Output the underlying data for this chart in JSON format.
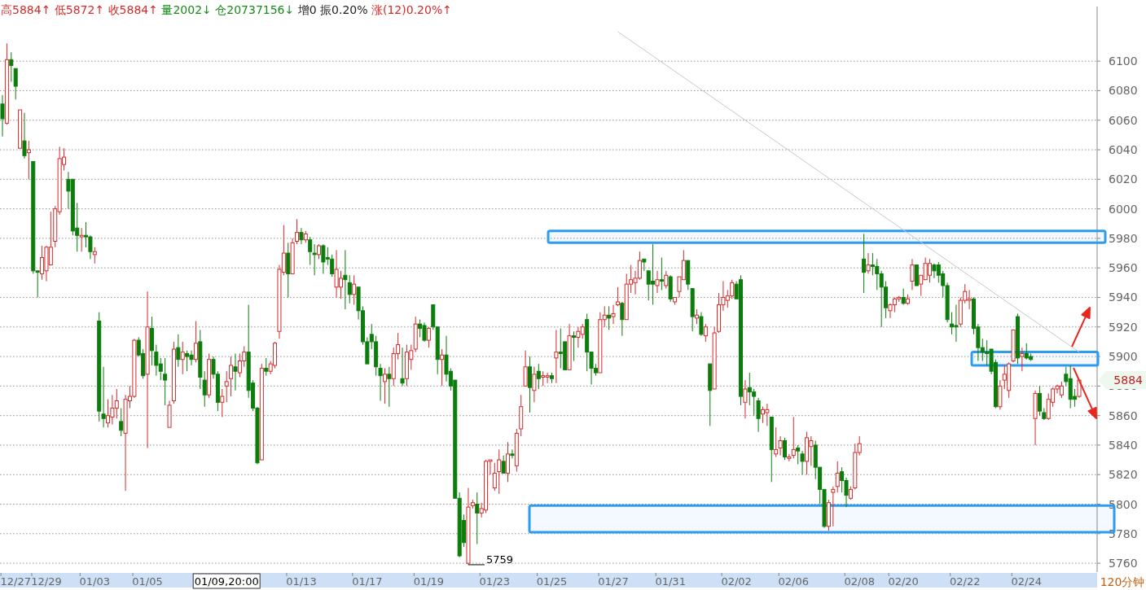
{
  "chart_data": {
    "type": "candlestick",
    "title": "高5884↑ 低5872↑ 收5884↑ 量2002↓ 仓20737156↓ 增0 振0.20% 涨(12)0.20%↑",
    "xlabel": "120分钟",
    "annotations": [
      "5759",
      "5884"
    ],
    "categories": [
      null,
      null,
      null,
      "12/27",
      null,
      null,
      null,
      null,
      null,
      null,
      "12/29",
      null,
      null,
      null,
      null,
      null,
      null,
      null,
      null,
      null,
      null,
      "01/03",
      null,
      null,
      null,
      null,
      null,
      null,
      null,
      null,
      null,
      null,
      null,
      "01/05",
      null,
      null,
      null,
      null,
      null,
      null,
      null,
      null,
      null,
      null,
      null,
      null,
      null,
      null,
      null,
      null,
      null,
      "01/09,20:00",
      null,
      null,
      null,
      null,
      null,
      null,
      null,
      null,
      null,
      null,
      null,
      null,
      null,
      null,
      null,
      null,
      "01/13",
      null,
      null,
      null,
      null,
      null,
      null,
      null,
      null,
      null,
      null,
      null,
      null,
      null,
      null,
      "01/17",
      null,
      null,
      null,
      null,
      null,
      null,
      null,
      null,
      null,
      null,
      null,
      null,
      null,
      "01/19",
      null,
      null,
      null,
      null,
      null,
      null,
      null,
      null,
      null,
      null,
      null,
      null,
      null,
      null,
      "01/23",
      null,
      null,
      null,
      null,
      null,
      null,
      null,
      null,
      null,
      null,
      null,
      null,
      "01/25",
      null,
      null,
      null,
      null,
      null,
      null,
      null,
      null,
      null,
      null,
      null,
      null,
      null,
      "01/27",
      null,
      null,
      null,
      null,
      null,
      null,
      null,
      null,
      null,
      null,
      null,
      null,
      "01/31",
      null,
      null,
      null,
      null,
      null,
      null,
      null,
      null,
      null,
      null,
      null,
      null,
      null,
      null,
      "02/02",
      null,
      null,
      null,
      null,
      null,
      null,
      null,
      null,
      null,
      null,
      null,
      null,
      "02/06",
      null,
      null,
      null,
      null,
      null,
      null,
      null,
      null,
      null,
      null,
      null,
      null,
      null,
      null,
      "02/08",
      null,
      null,
      null,
      null,
      null,
      null,
      null,
      null,
      null,
      "02/20",
      null,
      null,
      null,
      null,
      null,
      null,
      null,
      null,
      null,
      null,
      null,
      null,
      null,
      "02/22",
      null,
      null,
      null,
      null,
      null,
      null,
      null,
      null,
      null,
      null,
      null,
      null,
      null,
      "02/24",
      null,
      null,
      null,
      null,
      null,
      null,
      null,
      null,
      null,
      null,
      null,
      null
    ],
    "ohlc": [
      [
        6071,
        6077,
        6049,
        6061
      ],
      [
        6058,
        6112,
        6057,
        6101
      ],
      [
        6101,
        6106,
        6086,
        6097
      ],
      [
        6095,
        6095,
        6074,
        6083
      ],
      [
        6041,
        6067,
        6041,
        6067
      ],
      [
        6046,
        6065,
        6034,
        6036
      ],
      [
        6038,
        6046,
        6020,
        6040
      ],
      [
        6032,
        6032,
        5956,
        5958
      ],
      [
        5958,
        5958,
        5940,
        5957
      ],
      [
        5956,
        5975,
        5952,
        5967
      ],
      [
        5958,
        5975,
        5951,
        5974
      ],
      [
        5962,
        5998,
        5962,
        5974
      ],
      [
        5978,
        6002,
        5974,
        6000
      ],
      [
        5998,
        6042,
        5996,
        6034
      ],
      [
        6030,
        6041,
        6026,
        6035
      ],
      [
        6020,
        6025,
        6000,
        6012
      ],
      [
        6020,
        6020,
        5982,
        5985
      ],
      [
        5987,
        6004,
        5971,
        5982
      ],
      [
        5981,
        5987,
        5971,
        5982
      ],
      [
        5982,
        5991,
        5974,
        5981
      ],
      [
        5981,
        5982,
        5966,
        5971
      ],
      [
        5969,
        5974,
        5963,
        5971
      ],
      [
        5924,
        5930,
        5856,
        5863
      ],
      [
        5861,
        5893,
        5852,
        5858
      ],
      [
        5855,
        5871,
        5852,
        5860
      ],
      [
        5859,
        5874,
        5854,
        5865
      ],
      [
        5865,
        5878,
        5858,
        5870
      ],
      [
        5856,
        5865,
        5846,
        5850
      ],
      [
        5848,
        5874,
        5809,
        5871
      ],
      [
        5870,
        5880,
        5865,
        5873
      ],
      [
        5873,
        5912,
        5872,
        5911
      ],
      [
        5911,
        5913,
        5900,
        5901
      ],
      [
        5902,
        5905,
        5885,
        5887
      ],
      [
        5888,
        5944,
        5838,
        5920
      ],
      [
        5919,
        5927,
        5894,
        5904
      ],
      [
        5903,
        5908,
        5887,
        5894
      ],
      [
        5895,
        5899,
        5884,
        5890
      ],
      [
        5888,
        5899,
        5867,
        5884
      ],
      [
        5852,
        5870,
        5852,
        5867
      ],
      [
        5870,
        5910,
        5868,
        5905
      ],
      [
        5906,
        5915,
        5893,
        5898
      ],
      [
        5898,
        5910,
        5888,
        5903
      ],
      [
        5902,
        5904,
        5890,
        5900
      ],
      [
        5901,
        5904,
        5894,
        5898
      ],
      [
        5898,
        5924,
        5896,
        5909
      ],
      [
        5910,
        5918,
        5878,
        5886
      ],
      [
        5884,
        5890,
        5866,
        5874
      ],
      [
        5874,
        5902,
        5872,
        5898
      ],
      [
        5898,
        5900,
        5885,
        5888
      ],
      [
        5888,
        5890,
        5863,
        5869
      ],
      [
        5869,
        5878,
        5859,
        5873
      ],
      [
        5880,
        5890,
        5869,
        5883
      ],
      [
        5885,
        5900,
        5873,
        5894
      ],
      [
        5893,
        5902,
        5877,
        5890
      ],
      [
        5889,
        5902,
        5886,
        5897
      ],
      [
        5897,
        5907,
        5893,
        5903
      ],
      [
        5903,
        5935,
        5872,
        5877
      ],
      [
        5882,
        5884,
        5863,
        5865
      ],
      [
        5865,
        5866,
        5827,
        5828
      ],
      [
        5830,
        5895,
        5830,
        5892
      ],
      [
        5892,
        5899,
        5887,
        5890
      ],
      [
        5890,
        5897,
        5888,
        5895
      ],
      [
        5894,
        5910,
        5892,
        5909
      ],
      [
        5917,
        5962,
        5912,
        5959
      ],
      [
        5957,
        5989,
        5955,
        5970
      ],
      [
        5970,
        5977,
        5940,
        5956
      ],
      [
        5956,
        5980,
        5956,
        5977
      ],
      [
        5978,
        5993,
        5976,
        5984
      ],
      [
        5984,
        5987,
        5976,
        5979
      ],
      [
        5979,
        5985,
        5977,
        5983
      ],
      [
        5979,
        5981,
        5962,
        5971
      ],
      [
        5970,
        5976,
        5955,
        5969
      ],
      [
        5969,
        5976,
        5966,
        5975
      ],
      [
        5975,
        5976,
        5956,
        5964
      ],
      [
        5967,
        5974,
        5962,
        5966
      ],
      [
        5966,
        5969,
        5954,
        5956
      ],
      [
        5947,
        5972,
        5940,
        5959
      ],
      [
        5947,
        5958,
        5939,
        5953
      ],
      [
        5955,
        5972,
        5932,
        5952
      ],
      [
        5950,
        5955,
        5936,
        5942
      ],
      [
        5942,
        5955,
        5935,
        5949
      ],
      [
        5947,
        5947,
        5925,
        5931
      ],
      [
        5931,
        5934,
        5908,
        5910
      ],
      [
        5910,
        5913,
        5895,
        5895
      ],
      [
        5915,
        5922,
        5905,
        5910
      ],
      [
        5910,
        5914,
        5887,
        5893
      ],
      [
        5892,
        5895,
        5870,
        5887
      ],
      [
        5883,
        5892,
        5868,
        5888
      ],
      [
        5888,
        5893,
        5866,
        5885
      ],
      [
        5885,
        5906,
        5880,
        5902
      ],
      [
        5902,
        5916,
        5898,
        5908
      ],
      [
        5885,
        5906,
        5880,
        5882
      ],
      [
        5885,
        5908,
        5880,
        5903
      ],
      [
        5898,
        5908,
        5891,
        5904
      ],
      [
        5905,
        5927,
        5903,
        5922
      ],
      [
        5922,
        5925,
        5913,
        5919
      ],
      [
        5921,
        5923,
        5910,
        5911
      ],
      [
        5911,
        5920,
        5906,
        5919
      ],
      [
        5935,
        5935,
        5918,
        5920
      ],
      [
        5920,
        5920,
        5888,
        5898
      ],
      [
        5898,
        5905,
        5880,
        5901
      ],
      [
        5901,
        5914,
        5883,
        5888
      ],
      [
        5890,
        5892,
        5877,
        5880
      ],
      [
        5884,
        5884,
        5804,
        5804
      ],
      [
        5804,
        5808,
        5764,
        5765
      ],
      [
        5789,
        5793,
        5771,
        5774
      ],
      [
        5760,
        5811,
        5759,
        5798
      ],
      [
        5799,
        5803,
        5797,
        5801
      ],
      [
        5800,
        5808,
        5773,
        5794
      ],
      [
        5794,
        5801,
        5791,
        5797
      ],
      [
        5796,
        5830,
        5794,
        5829
      ],
      [
        5829,
        5830,
        5820,
        5830
      ],
      [
        5811,
        5828,
        5809,
        5821
      ],
      [
        5822,
        5837,
        5807,
        5830
      ],
      [
        5829,
        5833,
        5821,
        5821
      ],
      [
        5821,
        5842,
        5815,
        5834
      ],
      [
        5834,
        5837,
        5831,
        5833
      ],
      [
        5826,
        5851,
        5822,
        5848
      ],
      [
        5851,
        5874,
        5846,
        5866
      ],
      [
        5880,
        5904,
        5880,
        5893
      ],
      [
        5893,
        5900,
        5862,
        5879
      ],
      [
        5877,
        5893,
        5869,
        5888
      ],
      [
        5890,
        5895,
        5878,
        5885
      ],
      [
        5886,
        5890,
        5880,
        5887
      ],
      [
        5886,
        5889,
        5882,
        5887
      ],
      [
        5887,
        5889,
        5882,
        5885
      ],
      [
        5899,
        5918,
        5882,
        5903
      ],
      [
        5903,
        5919,
        5892,
        5902
      ],
      [
        5910,
        5910,
        5891,
        5891
      ],
      [
        5891,
        5922,
        5891,
        5914
      ],
      [
        5914,
        5917,
        5897,
        5913
      ],
      [
        5913,
        5920,
        5906,
        5917
      ],
      [
        5915,
        5922,
        5912,
        5920
      ],
      [
        5925,
        5929,
        5890,
        5903
      ],
      [
        5903,
        5903,
        5881,
        5892
      ],
      [
        5892,
        5895,
        5887,
        5889
      ],
      [
        5889,
        5930,
        5889,
        5925
      ],
      [
        5925,
        5934,
        5920,
        5928
      ],
      [
        5928,
        5934,
        5918,
        5926
      ],
      [
        5927,
        5935,
        5922,
        5929
      ],
      [
        5935,
        5947,
        5934,
        5937
      ],
      [
        5936,
        5937,
        5914,
        5925
      ],
      [
        5925,
        5956,
        5925,
        5949
      ],
      [
        5949,
        5962,
        5943,
        5952
      ],
      [
        5950,
        5958,
        5942,
        5953
      ],
      [
        5953,
        5971,
        5952,
        5965
      ],
      [
        5966,
        5966,
        5958,
        5964
      ],
      [
        5958,
        5958,
        5938,
        5949
      ],
      [
        5951,
        5976,
        5935,
        5949
      ],
      [
        5948,
        5958,
        5943,
        5952
      ],
      [
        5952,
        5967,
        5945,
        5951
      ],
      [
        5948,
        5958,
        5946,
        5955
      ],
      [
        5954,
        5955,
        5937,
        5939
      ],
      [
        5937,
        5940,
        5935,
        5940
      ],
      [
        5944,
        5954,
        5940,
        5954
      ],
      [
        5952,
        5972,
        5952,
        5965
      ],
      [
        5965,
        5965,
        5945,
        5949
      ],
      [
        5946,
        5946,
        5917,
        5927
      ],
      [
        5926,
        5932,
        5922,
        5928
      ],
      [
        5927,
        5930,
        5914,
        5915
      ],
      [
        5914,
        5922,
        5910,
        5920
      ],
      [
        5895,
        5895,
        5853,
        5877
      ],
      [
        5878,
        5920,
        5878,
        5916
      ],
      [
        5917,
        5943,
        5916,
        5935
      ],
      [
        5935,
        5951,
        5931,
        5940
      ],
      [
        5938,
        5945,
        5933,
        5941
      ],
      [
        5941,
        5952,
        5939,
        5950
      ],
      [
        5949,
        5951,
        5939,
        5939
      ],
      [
        5952,
        5955,
        5867,
        5873
      ],
      [
        5869,
        5884,
        5858,
        5878
      ],
      [
        5879,
        5889,
        5867,
        5876
      ],
      [
        5876,
        5878,
        5860,
        5873
      ],
      [
        5870,
        5872,
        5849,
        5858
      ],
      [
        5861,
        5866,
        5855,
        5864
      ],
      [
        5862,
        5868,
        5853,
        5864
      ],
      [
        5859,
        5859,
        5815,
        5837
      ],
      [
        5834,
        5852,
        5832,
        5837
      ],
      [
        5838,
        5846,
        5833,
        5843
      ],
      [
        5843,
        5845,
        5830,
        5832
      ],
      [
        5831,
        5834,
        5829,
        5832
      ],
      [
        5833,
        5859,
        5831,
        5837
      ],
      [
        5838,
        5840,
        5827,
        5836
      ],
      [
        5834,
        5836,
        5820,
        5829
      ],
      [
        5829,
        5849,
        5820,
        5845
      ],
      [
        5839,
        5846,
        5826,
        5843
      ],
      [
        5840,
        5843,
        5817,
        5825
      ],
      [
        5825,
        5825,
        5800,
        5810
      ],
      [
        5810,
        5810,
        5784,
        5785
      ],
      [
        5785,
        5803,
        5782,
        5801
      ],
      [
        5808,
        5812,
        5785,
        5810
      ],
      [
        5812,
        5829,
        5808,
        5821
      ],
      [
        5822,
        5825,
        5808,
        5816
      ],
      [
        5816,
        5818,
        5798,
        5806
      ],
      [
        5804,
        5812,
        5803,
        5810
      ],
      [
        5811,
        5841,
        5810,
        5835
      ],
      [
        5835,
        5846,
        5833,
        5841
      ],
      [
        5966,
        5983,
        5943,
        5957
      ],
      [
        5958,
        5970,
        5956,
        5962
      ],
      [
        5962,
        5970,
        5955,
        5961
      ],
      [
        5961,
        5966,
        5945,
        5956
      ],
      [
        5956,
        5958,
        5920,
        5947
      ],
      [
        5947,
        5951,
        5926,
        5933
      ],
      [
        5931,
        5936,
        5926,
        5935
      ],
      [
        5935,
        5940,
        5930,
        5939
      ],
      [
        5939,
        5941,
        5937,
        5940
      ],
      [
        5940,
        5946,
        5935,
        5936
      ],
      [
        5936,
        5942,
        5935,
        5939
      ],
      [
        5951,
        5966,
        5945,
        5962
      ],
      [
        5962,
        5962,
        5948,
        5948
      ],
      [
        5949,
        5955,
        5941,
        5955
      ],
      [
        5952,
        5967,
        5952,
        5963
      ],
      [
        5955,
        5966,
        5950,
        5963
      ],
      [
        5962,
        5963,
        5953,
        5958
      ],
      [
        5962,
        5964,
        5950,
        5955
      ],
      [
        5956,
        5958,
        5940,
        5948
      ],
      [
        5948,
        5950,
        5923,
        5925
      ],
      [
        5922,
        5930,
        5915,
        5920
      ],
      [
        5921,
        5935,
        5910,
        5920
      ],
      [
        5922,
        5940,
        5920,
        5938
      ],
      [
        5938,
        5949,
        5936,
        5944
      ],
      [
        5938,
        5945,
        5932,
        5939
      ],
      [
        5939,
        5940,
        5915,
        5919
      ],
      [
        5920,
        5922,
        5897,
        5906
      ],
      [
        5906,
        5912,
        5897,
        5903
      ],
      [
        5903,
        5911,
        5894,
        5902
      ],
      [
        5905,
        5905,
        5888,
        5890
      ],
      [
        5896,
        5898,
        5865,
        5866
      ],
      [
        5866,
        5884,
        5864,
        5880
      ],
      [
        5884,
        5894,
        5878,
        5888
      ],
      [
        5877,
        5896,
        5872,
        5895
      ],
      [
        5897,
        5918,
        5896,
        5918
      ],
      [
        5927,
        5929,
        5895,
        5899
      ],
      [
        5900,
        5906,
        5890,
        5902
      ],
      [
        5902,
        5909,
        5898,
        5899
      ],
      [
        5900,
        5902,
        5897,
        5898
      ],
      [
        5858,
        5877,
        5840,
        5875
      ],
      [
        5875,
        5880,
        5860,
        5863
      ],
      [
        5862,
        5865,
        5857,
        5858
      ],
      [
        5858,
        5875,
        5857,
        5871
      ],
      [
        5869,
        5879,
        5866,
        5878
      ],
      [
        5878,
        5881,
        5875,
        5880
      ],
      [
        5874,
        5883,
        5872,
        5880
      ],
      [
        5888,
        5893,
        5880,
        5883
      ],
      [
        5885,
        5894,
        5865,
        5871
      ],
      [
        5873,
        5878,
        5866,
        5871
      ],
      [
        5873,
        5884,
        5872,
        5884
      ]
    ],
    "series": [
      {
        "type": "line",
        "values": [
          null,
          null,
          null,
          null,
          null,
          null,
          null,
          null,
          null,
          null,
          null,
          null,
          null,
          null,
          null,
          null,
          null,
          null,
          null,
          null,
          null,
          null,
          null,
          null,
          null,
          null,
          null,
          null,
          null,
          null,
          null,
          null,
          null,
          null,
          null,
          null,
          null,
          null,
          null,
          null,
          null,
          null,
          null,
          null,
          null,
          null,
          null,
          null,
          null,
          null,
          null,
          null,
          null,
          null,
          null,
          null,
          null,
          null,
          null,
          null,
          null,
          null,
          null,
          null,
          null,
          null,
          null,
          null,
          null,
          null,
          null,
          null,
          null,
          null,
          null,
          null,
          null,
          null,
          null,
          null,
          null,
          null,
          null,
          null,
          null,
          null,
          null,
          null,
          null,
          null,
          null,
          null,
          null,
          null,
          null,
          null,
          null,
          null,
          null,
          null,
          null,
          null,
          null,
          null,
          null,
          null,
          null,
          null,
          null,
          null,
          null,
          null,
          null,
          null,
          null,
          null,
          null,
          null,
          null,
          null,
          null,
          null,
          null,
          null,
          null,
          null,
          null,
          null,
          null,
          null,
          null,
          null,
          null,
          null,
          null,
          null,
          null,
          null,
          null,
          null,
          6120,
          null,
          null,
          null,
          null,
          null,
          null,
          null,
          null,
          null,
          null,
          null,
          null,
          null,
          null,
          null,
          null,
          null,
          null,
          null,
          null,
          null,
          null,
          null,
          null,
          null,
          null,
          null,
          null,
          null,
          null,
          null,
          null,
          null,
          null,
          null,
          null,
          null,
          null,
          null,
          null,
          null,
          null,
          null,
          null,
          null,
          null,
          null,
          null,
          null,
          null,
          null,
          null,
          null,
          null,
          null,
          null,
          null,
          null,
          null,
          null,
          null,
          null,
          null,
          null,
          null,
          null,
          null,
          null,
          null,
          null,
          null,
          null,
          null,
          null,
          null,
          null,
          null,
          null,
          null,
          null,
          null,
          null,
          null,
          null,
          null,
          null,
          null,
          null,
          null,
          null,
          null,
          null,
          null,
          null,
          null,
          null,
          null,
          null,
          null,
          null,
          null,
          null,
          null,
          null,
          5903
        ],
        "color": "#c8c8c8"
      }
    ],
    "ylim": [
      5754,
      6137
    ],
    "yticks": [
      5760,
      5780,
      5800,
      5820,
      5840,
      5860,
      5880,
      5900,
      5920,
      5940,
      5960,
      5980,
      6000,
      6020,
      6040,
      6060,
      6080,
      6100
    ],
    "grid": "y",
    "bands": [
      {
        "axis": "y",
        "from": 5977,
        "to": 5985,
        "color": "#2d9cf0"
      },
      {
        "axis": "y",
        "from": 5894,
        "to": 5903,
        "color": "#2d9cf0"
      },
      {
        "axis": "y",
        "from": 5781,
        "to": 5799,
        "color": "#2d9cf0"
      }
    ]
  }
}
